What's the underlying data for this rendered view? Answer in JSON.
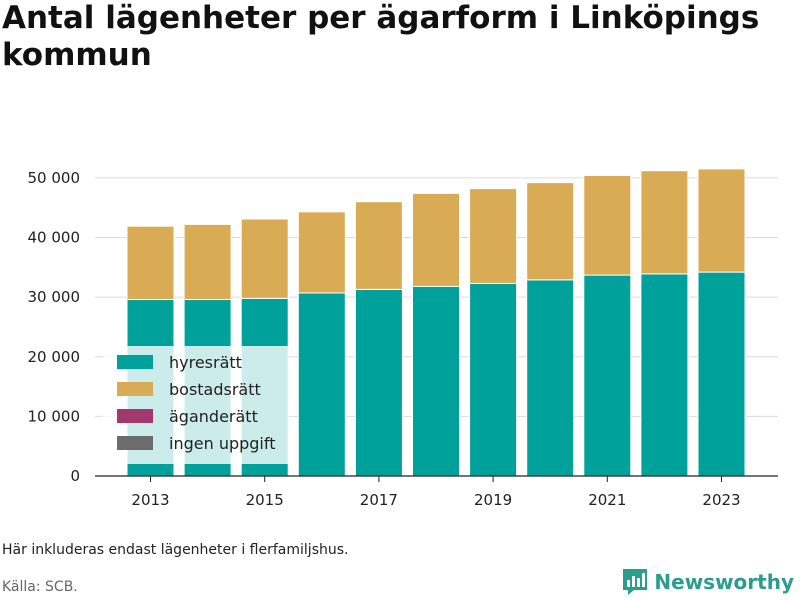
{
  "title": "Antal lägenheter per ägarform i Linköpings kommun",
  "note": "Här inkluderas endast lägenheter i flerfamiljshus.",
  "source": "Källa: SCB.",
  "brand": {
    "name": "Newsworthy",
    "icon": "newsworthy-logo-icon",
    "color": "#2a9d8f"
  },
  "chart_data": {
    "type": "bar",
    "stacked": true,
    "categories": [
      "2013",
      "2014",
      "2015",
      "2016",
      "2017",
      "2018",
      "2019",
      "2020",
      "2021",
      "2022",
      "2023"
    ],
    "x_tick_labels": [
      "2013",
      "2015",
      "2017",
      "2019",
      "2021",
      "2023"
    ],
    "y_ticks": [
      0,
      10000,
      20000,
      30000,
      40000,
      50000
    ],
    "y_tick_labels": [
      "0",
      "10 000",
      "20 000",
      "30 000",
      "40 000",
      "50 000"
    ],
    "ylim": [
      0,
      53000
    ],
    "grid": true,
    "legend_position": "bottom-left",
    "series": [
      {
        "name": "hyresrätt",
        "color": "#00a19a",
        "values": [
          29600,
          29600,
          29800,
          30700,
          31300,
          31800,
          32300,
          32900,
          33700,
          33900,
          34200
        ]
      },
      {
        "name": "bostadsrätt",
        "color": "#d9ab55",
        "values": [
          12300,
          12600,
          13300,
          13600,
          14700,
          15600,
          15900,
          16300,
          16700,
          17300,
          17300
        ]
      },
      {
        "name": "äganderätt",
        "color": "#a3386c",
        "values": [
          0,
          0,
          0,
          0,
          0,
          0,
          0,
          0,
          0,
          0,
          0
        ]
      },
      {
        "name": "ingen uppgift",
        "color": "#6c6c6c",
        "values": [
          0,
          0,
          0,
          0,
          0,
          0,
          0,
          0,
          0,
          0,
          0
        ]
      }
    ]
  }
}
